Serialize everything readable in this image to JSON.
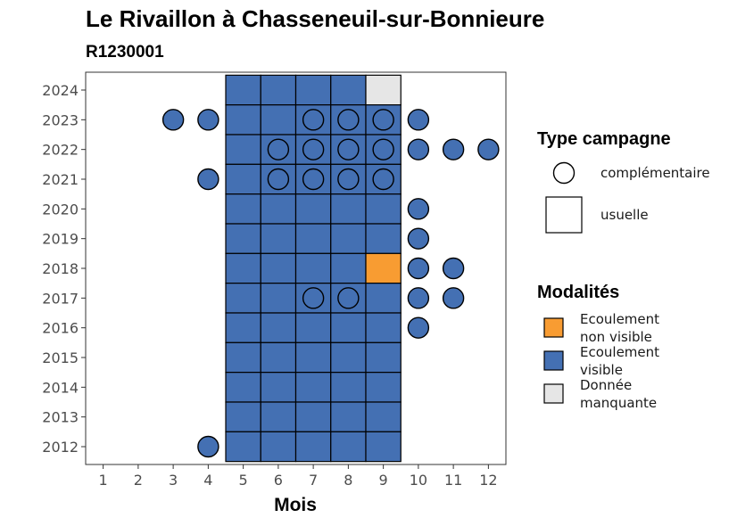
{
  "chart_data": {
    "type": "heatmap",
    "title": "Le Rivaillon à Chasseneuil-sur-Bonnieure",
    "subtitle": "R1230001",
    "xlabel": "Mois",
    "ylabel": "",
    "x_ticks": [
      1,
      2,
      3,
      4,
      5,
      6,
      7,
      8,
      9,
      10,
      11,
      12
    ],
    "y_ticks": [
      2012,
      2013,
      2014,
      2015,
      2016,
      2017,
      2018,
      2019,
      2020,
      2021,
      2022,
      2023,
      2024
    ],
    "xlim": [
      0.5,
      12.5
    ],
    "ylim": [
      2011.4,
      2024.6
    ],
    "grid": false,
    "legend_position": "right",
    "legend": {
      "shape_title": "Type campagne",
      "shape_entries": [
        {
          "label": "complémentaire",
          "shape": "circle"
        },
        {
          "label": "usuelle",
          "shape": "square"
        }
      ],
      "fill_title": "Modalités",
      "fill_entries": [
        {
          "label_lines": [
            "Ecoulement",
            "non visible"
          ],
          "color": "#F89C32"
        },
        {
          "label_lines": [
            "Ecoulement",
            "visible"
          ],
          "color": "#4470B3"
        },
        {
          "label_lines": [
            "Donnée",
            "manquante"
          ],
          "color": "#E6E6E6"
        }
      ]
    },
    "colors": {
      "Ecoulement visible": "#4470B3",
      "Ecoulement non visible": "#F89C32",
      "Donnée manquante": "#E6E6E6"
    },
    "points": [
      {
        "year": 2024,
        "month": 5,
        "type": "usuelle",
        "modalite": "Ecoulement visible"
      },
      {
        "year": 2024,
        "month": 6,
        "type": "usuelle",
        "modalite": "Ecoulement visible"
      },
      {
        "year": 2024,
        "month": 7,
        "type": "usuelle",
        "modalite": "Ecoulement visible"
      },
      {
        "year": 2024,
        "month": 8,
        "type": "usuelle",
        "modalite": "Ecoulement visible"
      },
      {
        "year": 2024,
        "month": 9,
        "type": "usuelle",
        "modalite": "Donnée manquante"
      },
      {
        "year": 2023,
        "month": 5,
        "type": "usuelle",
        "modalite": "Ecoulement visible"
      },
      {
        "year": 2023,
        "month": 6,
        "type": "usuelle",
        "modalite": "Ecoulement visible"
      },
      {
        "year": 2023,
        "month": 7,
        "type": "usuelle",
        "modalite": "Ecoulement visible"
      },
      {
        "year": 2023,
        "month": 8,
        "type": "usuelle",
        "modalite": "Ecoulement visible"
      },
      {
        "year": 2023,
        "month": 9,
        "type": "usuelle",
        "modalite": "Ecoulement visible"
      },
      {
        "year": 2023,
        "month": 3,
        "type": "complémentaire",
        "modalite": "Ecoulement visible"
      },
      {
        "year": 2023,
        "month": 4,
        "type": "complémentaire",
        "modalite": "Ecoulement visible"
      },
      {
        "year": 2023,
        "month": 7,
        "type": "complémentaire",
        "modalite": "Ecoulement visible"
      },
      {
        "year": 2023,
        "month": 8,
        "type": "complémentaire",
        "modalite": "Ecoulement visible"
      },
      {
        "year": 2023,
        "month": 9,
        "type": "complémentaire",
        "modalite": "Ecoulement visible"
      },
      {
        "year": 2023,
        "month": 10,
        "type": "complémentaire",
        "modalite": "Ecoulement visible"
      },
      {
        "year": 2022,
        "month": 5,
        "type": "usuelle",
        "modalite": "Ecoulement visible"
      },
      {
        "year": 2022,
        "month": 6,
        "type": "usuelle",
        "modalite": "Ecoulement visible"
      },
      {
        "year": 2022,
        "month": 7,
        "type": "usuelle",
        "modalite": "Ecoulement visible"
      },
      {
        "year": 2022,
        "month": 8,
        "type": "usuelle",
        "modalite": "Ecoulement visible"
      },
      {
        "year": 2022,
        "month": 9,
        "type": "usuelle",
        "modalite": "Ecoulement visible"
      },
      {
        "year": 2022,
        "month": 6,
        "type": "complémentaire",
        "modalite": "Ecoulement visible"
      },
      {
        "year": 2022,
        "month": 7,
        "type": "complémentaire",
        "modalite": "Ecoulement visible"
      },
      {
        "year": 2022,
        "month": 8,
        "type": "complémentaire",
        "modalite": "Ecoulement visible"
      },
      {
        "year": 2022,
        "month": 9,
        "type": "complémentaire",
        "modalite": "Ecoulement visible"
      },
      {
        "year": 2022,
        "month": 10,
        "type": "complémentaire",
        "modalite": "Ecoulement visible"
      },
      {
        "year": 2022,
        "month": 11,
        "type": "complémentaire",
        "modalite": "Ecoulement visible"
      },
      {
        "year": 2022,
        "month": 12,
        "type": "complémentaire",
        "modalite": "Ecoulement visible"
      },
      {
        "year": 2021,
        "month": 5,
        "type": "usuelle",
        "modalite": "Ecoulement visible"
      },
      {
        "year": 2021,
        "month": 6,
        "type": "usuelle",
        "modalite": "Ecoulement visible"
      },
      {
        "year": 2021,
        "month": 7,
        "type": "usuelle",
        "modalite": "Ecoulement visible"
      },
      {
        "year": 2021,
        "month": 8,
        "type": "usuelle",
        "modalite": "Ecoulement visible"
      },
      {
        "year": 2021,
        "month": 9,
        "type": "usuelle",
        "modalite": "Ecoulement visible"
      },
      {
        "year": 2021,
        "month": 4,
        "type": "complémentaire",
        "modalite": "Ecoulement visible"
      },
      {
        "year": 2021,
        "month": 6,
        "type": "complémentaire",
        "modalite": "Ecoulement visible"
      },
      {
        "year": 2021,
        "month": 7,
        "type": "complémentaire",
        "modalite": "Ecoulement visible"
      },
      {
        "year": 2021,
        "month": 8,
        "type": "complémentaire",
        "modalite": "Ecoulement visible"
      },
      {
        "year": 2021,
        "month": 9,
        "type": "complémentaire",
        "modalite": "Ecoulement visible"
      },
      {
        "year": 2020,
        "month": 5,
        "type": "usuelle",
        "modalite": "Ecoulement visible"
      },
      {
        "year": 2020,
        "month": 6,
        "type": "usuelle",
        "modalite": "Ecoulement visible"
      },
      {
        "year": 2020,
        "month": 7,
        "type": "usuelle",
        "modalite": "Ecoulement visible"
      },
      {
        "year": 2020,
        "month": 8,
        "type": "usuelle",
        "modalite": "Ecoulement visible"
      },
      {
        "year": 2020,
        "month": 9,
        "type": "usuelle",
        "modalite": "Ecoulement visible"
      },
      {
        "year": 2020,
        "month": 10,
        "type": "complémentaire",
        "modalite": "Ecoulement visible"
      },
      {
        "year": 2019,
        "month": 5,
        "type": "usuelle",
        "modalite": "Ecoulement visible"
      },
      {
        "year": 2019,
        "month": 6,
        "type": "usuelle",
        "modalite": "Ecoulement visible"
      },
      {
        "year": 2019,
        "month": 7,
        "type": "usuelle",
        "modalite": "Ecoulement visible"
      },
      {
        "year": 2019,
        "month": 8,
        "type": "usuelle",
        "modalite": "Ecoulement visible"
      },
      {
        "year": 2019,
        "month": 9,
        "type": "usuelle",
        "modalite": "Ecoulement visible"
      },
      {
        "year": 2019,
        "month": 10,
        "type": "complémentaire",
        "modalite": "Ecoulement visible"
      },
      {
        "year": 2018,
        "month": 5,
        "type": "usuelle",
        "modalite": "Ecoulement visible"
      },
      {
        "year": 2018,
        "month": 6,
        "type": "usuelle",
        "modalite": "Ecoulement visible"
      },
      {
        "year": 2018,
        "month": 7,
        "type": "usuelle",
        "modalite": "Ecoulement visible"
      },
      {
        "year": 2018,
        "month": 8,
        "type": "usuelle",
        "modalite": "Ecoulement visible"
      },
      {
        "year": 2018,
        "month": 9,
        "type": "usuelle",
        "modalite": "Ecoulement non visible"
      },
      {
        "year": 2018,
        "month": 10,
        "type": "complémentaire",
        "modalite": "Ecoulement visible"
      },
      {
        "year": 2018,
        "month": 11,
        "type": "complémentaire",
        "modalite": "Ecoulement visible"
      },
      {
        "year": 2017,
        "month": 5,
        "type": "usuelle",
        "modalite": "Ecoulement visible"
      },
      {
        "year": 2017,
        "month": 6,
        "type": "usuelle",
        "modalite": "Ecoulement visible"
      },
      {
        "year": 2017,
        "month": 7,
        "type": "usuelle",
        "modalite": "Ecoulement visible"
      },
      {
        "year": 2017,
        "month": 8,
        "type": "usuelle",
        "modalite": "Ecoulement visible"
      },
      {
        "year": 2017,
        "month": 9,
        "type": "usuelle",
        "modalite": "Ecoulement visible"
      },
      {
        "year": 2017,
        "month": 7,
        "type": "complémentaire",
        "modalite": "Ecoulement visible"
      },
      {
        "year": 2017,
        "month": 8,
        "type": "complémentaire",
        "modalite": "Ecoulement visible"
      },
      {
        "year": 2017,
        "month": 10,
        "type": "complémentaire",
        "modalite": "Ecoulement visible"
      },
      {
        "year": 2017,
        "month": 11,
        "type": "complémentaire",
        "modalite": "Ecoulement visible"
      },
      {
        "year": 2016,
        "month": 5,
        "type": "usuelle",
        "modalite": "Ecoulement visible"
      },
      {
        "year": 2016,
        "month": 6,
        "type": "usuelle",
        "modalite": "Ecoulement visible"
      },
      {
        "year": 2016,
        "month": 7,
        "type": "usuelle",
        "modalite": "Ecoulement visible"
      },
      {
        "year": 2016,
        "month": 8,
        "type": "usuelle",
        "modalite": "Ecoulement visible"
      },
      {
        "year": 2016,
        "month": 9,
        "type": "usuelle",
        "modalite": "Ecoulement visible"
      },
      {
        "year": 2016,
        "month": 10,
        "type": "complémentaire",
        "modalite": "Ecoulement visible"
      },
      {
        "year": 2015,
        "month": 5,
        "type": "usuelle",
        "modalite": "Ecoulement visible"
      },
      {
        "year": 2015,
        "month": 6,
        "type": "usuelle",
        "modalite": "Ecoulement visible"
      },
      {
        "year": 2015,
        "month": 7,
        "type": "usuelle",
        "modalite": "Ecoulement visible"
      },
      {
        "year": 2015,
        "month": 8,
        "type": "usuelle",
        "modalite": "Ecoulement visible"
      },
      {
        "year": 2015,
        "month": 9,
        "type": "usuelle",
        "modalite": "Ecoulement visible"
      },
      {
        "year": 2014,
        "month": 5,
        "type": "usuelle",
        "modalite": "Ecoulement visible"
      },
      {
        "year": 2014,
        "month": 6,
        "type": "usuelle",
        "modalite": "Ecoulement visible"
      },
      {
        "year": 2014,
        "month": 7,
        "type": "usuelle",
        "modalite": "Ecoulement visible"
      },
      {
        "year": 2014,
        "month": 8,
        "type": "usuelle",
        "modalite": "Ecoulement visible"
      },
      {
        "year": 2014,
        "month": 9,
        "type": "usuelle",
        "modalite": "Ecoulement visible"
      },
      {
        "year": 2013,
        "month": 5,
        "type": "usuelle",
        "modalite": "Ecoulement visible"
      },
      {
        "year": 2013,
        "month": 6,
        "type": "usuelle",
        "modalite": "Ecoulement visible"
      },
      {
        "year": 2013,
        "month": 7,
        "type": "usuelle",
        "modalite": "Ecoulement visible"
      },
      {
        "year": 2013,
        "month": 8,
        "type": "usuelle",
        "modalite": "Ecoulement visible"
      },
      {
        "year": 2013,
        "month": 9,
        "type": "usuelle",
        "modalite": "Ecoulement visible"
      },
      {
        "year": 2012,
        "month": 5,
        "type": "usuelle",
        "modalite": "Ecoulement visible"
      },
      {
        "year": 2012,
        "month": 6,
        "type": "usuelle",
        "modalite": "Ecoulement visible"
      },
      {
        "year": 2012,
        "month": 7,
        "type": "usuelle",
        "modalite": "Ecoulement visible"
      },
      {
        "year": 2012,
        "month": 8,
        "type": "usuelle",
        "modalite": "Ecoulement visible"
      },
      {
        "year": 2012,
        "month": 9,
        "type": "usuelle",
        "modalite": "Ecoulement visible"
      },
      {
        "year": 2012,
        "month": 4,
        "type": "complémentaire",
        "modalite": "Ecoulement visible"
      }
    ]
  }
}
